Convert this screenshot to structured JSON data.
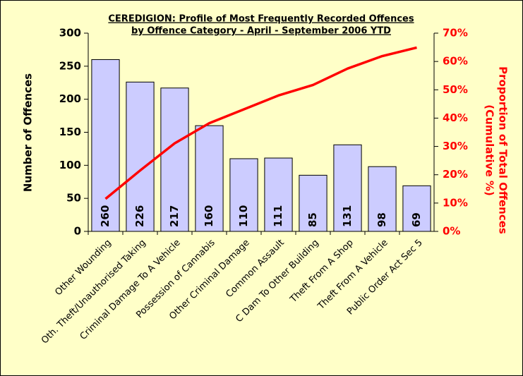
{
  "chart_data": {
    "type": "bar",
    "title": [
      "CEREDIGION: Profile of Most Frequently Recorded Offences",
      "by Offence Category - April - September 2006 YTD"
    ],
    "ylabel": "Number of Offences",
    "y2label": [
      "Proportion of Total Offences",
      "(Cumulative %)"
    ],
    "categories": [
      "Other Wounding",
      "Oth. Theft/Unauthorised Taking",
      "Criminal Damage To A Vehicle",
      "Possession of Cannabis",
      "Other Criminal Damage",
      "Common Assault",
      "C Dam To  Other Building",
      "Theft From A Shop",
      "Theft From A Vehicle",
      "Public Order Act Sec 5"
    ],
    "series": [
      {
        "name": "Number of Offences",
        "color": "#ccccff",
        "values": [
          260,
          226,
          217,
          160,
          110,
          111,
          85,
          131,
          98,
          69
        ]
      },
      {
        "name": "Cumulative %",
        "color": "#ff0000",
        "axis": "y2",
        "type": "line",
        "values": [
          11.5,
          21.5,
          31.1,
          38.2,
          43.1,
          48.0,
          51.7,
          57.5,
          61.9,
          64.9
        ]
      }
    ],
    "ylim": [
      0,
      300
    ],
    "yticks": [
      0,
      50,
      100,
      150,
      200,
      250,
      300
    ],
    "y2lim": [
      0,
      70
    ],
    "y2ticks": [
      {
        "value": 0,
        "label": "0%"
      },
      {
        "value": 10,
        "label": "10%"
      },
      {
        "value": 20,
        "label": "20%"
      },
      {
        "value": 30,
        "label": "30%"
      },
      {
        "value": 40,
        "label": "40%"
      },
      {
        "value": 50,
        "label": "50%"
      },
      {
        "value": 60,
        "label": "60%"
      },
      {
        "value": 70,
        "label": "70%"
      }
    ]
  }
}
